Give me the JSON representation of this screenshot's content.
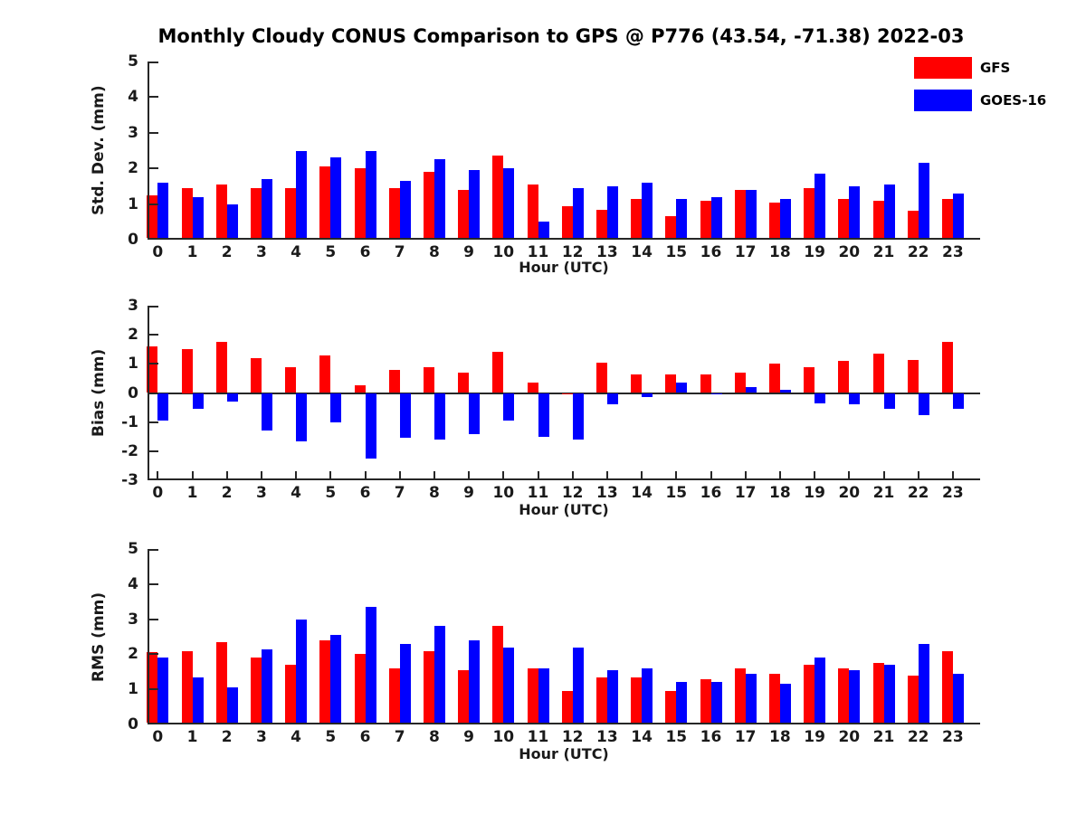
{
  "title": "Monthly Cloudy CONUS Comparison to GPS @ P776 (43.54, -71.38) 2022-03",
  "colors": {
    "gfs": "#ff0000",
    "goes16": "#0000ff",
    "axis": "#262626"
  },
  "legend": [
    {
      "label": "GFS",
      "color": "#ff0000"
    },
    {
      "label": "GOES-16",
      "color": "#0000ff"
    }
  ],
  "chart_data": [
    {
      "type": "bar",
      "name": "std-dev",
      "ylabel": "Std. Dev. (mm)",
      "xlabel": "Hour (UTC)",
      "ylim": [
        0,
        5
      ],
      "yticks": [
        0,
        1,
        2,
        3,
        4,
        5
      ],
      "grid": false,
      "legend_position": "top-right",
      "categories": [
        0,
        1,
        2,
        3,
        4,
        5,
        6,
        7,
        8,
        9,
        10,
        11,
        12,
        13,
        14,
        15,
        16,
        17,
        18,
        19,
        20,
        21,
        22,
        23
      ],
      "series": [
        {
          "name": "GFS",
          "color": "#ff0000",
          "values": [
            1.25,
            1.45,
            1.55,
            1.45,
            1.45,
            2.05,
            2.0,
            1.45,
            1.9,
            1.4,
            2.35,
            1.55,
            0.95,
            0.85,
            1.15,
            0.65,
            1.1,
            1.4,
            1.05,
            1.45,
            1.15,
            1.1,
            0.8,
            1.15
          ]
        },
        {
          "name": "GOES-16",
          "color": "#0000ff",
          "values": [
            1.6,
            1.2,
            1.0,
            1.7,
            2.5,
            2.3,
            2.5,
            1.65,
            2.25,
            1.95,
            2.0,
            0.5,
            1.45,
            1.5,
            1.6,
            1.15,
            1.2,
            1.4,
            1.15,
            1.85,
            1.5,
            1.55,
            2.15,
            1.3
          ]
        }
      ]
    },
    {
      "type": "bar",
      "name": "bias",
      "ylabel": "Bias (mm)",
      "xlabel": "Hour (UTC)",
      "ylim": [
        -3,
        3
      ],
      "yticks": [
        3,
        2,
        1,
        0,
        -1,
        -2,
        -3
      ],
      "grid": false,
      "categories": [
        0,
        1,
        2,
        3,
        4,
        5,
        6,
        7,
        8,
        9,
        10,
        11,
        12,
        13,
        14,
        15,
        16,
        17,
        18,
        19,
        20,
        21,
        22,
        23
      ],
      "series": [
        {
          "name": "GFS",
          "color": "#ff0000",
          "values": [
            1.6,
            1.5,
            1.75,
            1.2,
            0.9,
            1.3,
            0.25,
            0.8,
            0.9,
            0.7,
            1.4,
            0.35,
            -0.05,
            1.05,
            0.65,
            0.65,
            0.65,
            0.7,
            1.0,
            0.9,
            1.1,
            1.35,
            1.15,
            1.75
          ]
        },
        {
          "name": "GOES-16",
          "color": "#0000ff",
          "values": [
            -0.95,
            -0.55,
            -0.3,
            -1.3,
            -1.65,
            -1.0,
            -2.25,
            -1.55,
            -1.6,
            -1.4,
            -0.95,
            -1.5,
            -1.6,
            -0.4,
            -0.15,
            0.35,
            -0.05,
            0.2,
            0.1,
            -0.35,
            -0.4,
            -0.55,
            -0.75,
            -0.55
          ]
        }
      ]
    },
    {
      "type": "bar",
      "name": "rms",
      "ylabel": "RMS (mm)",
      "xlabel": "Hour (UTC)",
      "ylim": [
        0,
        5
      ],
      "yticks": [
        0,
        1,
        2,
        3,
        4,
        5
      ],
      "grid": false,
      "categories": [
        0,
        1,
        2,
        3,
        4,
        5,
        6,
        7,
        8,
        9,
        10,
        11,
        12,
        13,
        14,
        15,
        16,
        17,
        18,
        19,
        20,
        21,
        22,
        23
      ],
      "series": [
        {
          "name": "GFS",
          "color": "#ff0000",
          "values": [
            2.05,
            2.1,
            2.35,
            1.9,
            1.7,
            2.4,
            2.0,
            1.6,
            2.1,
            1.55,
            2.8,
            1.6,
            0.95,
            1.35,
            1.35,
            0.95,
            1.3,
            1.6,
            1.45,
            1.7,
            1.6,
            1.75,
            1.4,
            2.1
          ]
        },
        {
          "name": "GOES-16",
          "color": "#0000ff",
          "values": [
            1.9,
            1.35,
            1.05,
            2.15,
            3.0,
            2.55,
            3.35,
            2.3,
            2.8,
            2.4,
            2.2,
            1.6,
            2.2,
            1.55,
            1.6,
            1.2,
            1.2,
            1.45,
            1.15,
            1.9,
            1.55,
            1.7,
            2.3,
            1.45
          ]
        }
      ]
    }
  ]
}
